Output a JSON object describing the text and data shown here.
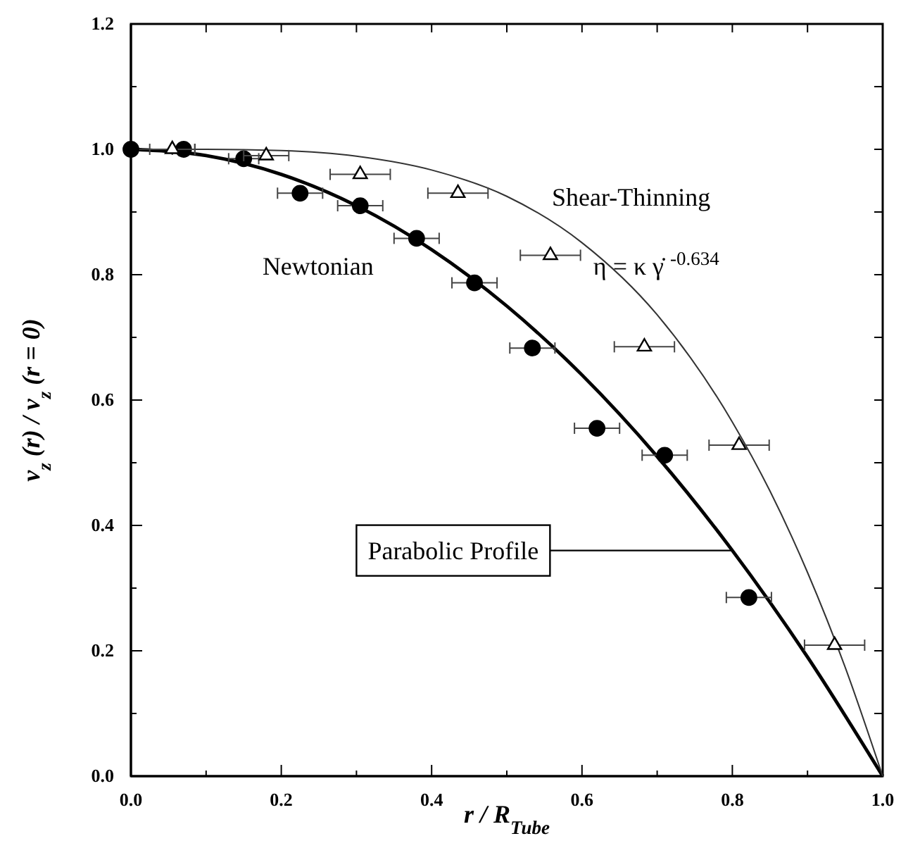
{
  "chart_data": {
    "type": "scatter",
    "xlabel": "r / R$_{Tube}$",
    "ylabel": "v$_{z}$ (r) / v$_{z}$ (r = 0)",
    "xlim": [
      0,
      1
    ],
    "ylim": [
      0,
      1.2
    ],
    "xticks": [
      {
        "value": 0,
        "label": "0.0"
      },
      {
        "value": 0.1,
        "label": null
      },
      {
        "value": 0.2,
        "label": "0.2"
      },
      {
        "value": 0.3,
        "label": null
      },
      {
        "value": 0.4,
        "label": "0.4"
      },
      {
        "value": 0.5,
        "label": null
      },
      {
        "value": 0.6,
        "label": "0.6"
      },
      {
        "value": 0.7,
        "label": null
      },
      {
        "value": 0.8,
        "label": "0.8"
      },
      {
        "value": 0.9,
        "label": null
      },
      {
        "value": 1,
        "label": "1.0"
      }
    ],
    "yticks": [
      {
        "value": 0,
        "label": "0.0"
      },
      {
        "value": 0.1,
        "label": null
      },
      {
        "value": 0.2,
        "label": "0.2"
      },
      {
        "value": 0.3,
        "label": null
      },
      {
        "value": 0.4,
        "label": "0.4"
      },
      {
        "value": 0.5,
        "label": null
      },
      {
        "value": 0.6,
        "label": "0.6"
      },
      {
        "value": 0.7,
        "label": null
      },
      {
        "value": 0.8,
        "label": "0.8"
      },
      {
        "value": 0.9,
        "label": null
      },
      {
        "value": 1,
        "label": "1.0"
      },
      {
        "value": 1.1,
        "label": null
      },
      {
        "value": 1.2,
        "label": "1.2"
      }
    ],
    "grid": false,
    "series": [
      {
        "type": "line",
        "color": "#000000",
        "line_style": "solid",
        "marker": "none",
        "x": [
          0,
          0.1,
          0.2,
          0.3,
          0.4,
          0.5,
          0.6,
          0.7,
          0.8,
          0.9,
          1
        ],
        "values": [
          1,
          0.99,
          0.96,
          0.91,
          0.84,
          0.75,
          0.64,
          0.51,
          0.36,
          0.19,
          0
        ]
      },
      {
        "type": "line",
        "color": "#333333",
        "line_style": "solid",
        "marker": "none",
        "x": [
          0,
          0.1,
          0.2,
          0.3,
          0.4,
          0.5,
          0.6,
          0.7,
          0.8,
          0.85,
          0.9,
          0.95,
          1
        ],
        "values": [
          1,
          1,
          0.998,
          0.989,
          0.967,
          0.925,
          0.851,
          0.736,
          0.565,
          0.455,
          0.325,
          0.174,
          0
        ]
      },
      {
        "color": "#000000",
        "marker": "circle",
        "x": [
          0,
          0.07,
          0.15,
          0.225,
          0.305,
          0.38,
          0.457,
          0.534,
          0.62,
          0.71,
          0.822
        ],
        "values": [
          1,
          1,
          0.985,
          0.93,
          0.91,
          0.858,
          0.787,
          0.683,
          0.555,
          0.512,
          0.285
        ],
        "xerrors": [
          null,
          0.015,
          0.02,
          0.03,
          0.03,
          0.03,
          0.03,
          0.03,
          0.03,
          0.03,
          0.03
        ]
      },
      {
        "color": "#000000",
        "marker": "triangle",
        "x": [
          0.055,
          0.18,
          0.305,
          0.435,
          0.558,
          0.683,
          0.809,
          0.936
        ],
        "values": [
          1,
          0.99,
          0.96,
          0.93,
          0.831,
          0.685,
          0.528,
          0.209
        ],
        "xerrors": [
          0.03,
          0.03,
          0.04,
          0.04,
          0.04,
          0.04,
          0.04,
          0.04
        ]
      }
    ],
    "annotations": [
      "Newtonian",
      "Shear-Thinning",
      "η = κ γ̇ $^{-0.634}$",
      {
        "text": "Parabolic Profile",
        "x": 0.8,
        "y": 0.36
      }
    ]
  }
}
